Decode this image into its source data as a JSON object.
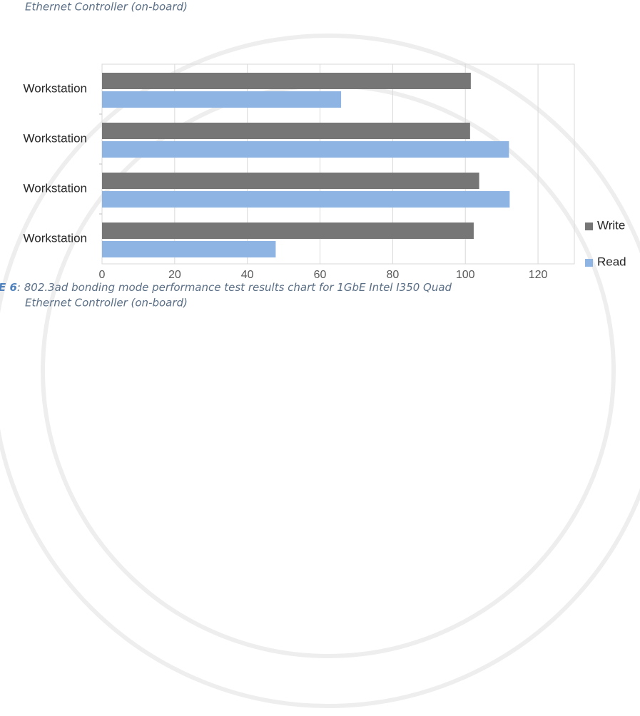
{
  "document": {
    "caption_top": "Ethernet Controller (on-board)",
    "figure_label": "E 6",
    "caption_line1": ": 802.3ad bonding mode performance test results chart for 1GbE Intel I350 Quad",
    "caption_line2": "Ethernet Controller (on-board)"
  },
  "chart_data": {
    "type": "barh",
    "categories": [
      "Workstation",
      "Workstation",
      "Workstation",
      "Workstation"
    ],
    "series": [
      {
        "name": "Write",
        "color": "#767676",
        "values": [
          101.5,
          101.3,
          103.8,
          102.3
        ]
      },
      {
        "name": "Read",
        "color": "#8eb4e3",
        "values": [
          65.8,
          112,
          112.2,
          47.8
        ]
      }
    ],
    "xlim": [
      0,
      130
    ],
    "xticks": [
      0,
      20,
      40,
      60,
      80,
      100,
      120
    ],
    "grid": true,
    "legend": "right"
  }
}
